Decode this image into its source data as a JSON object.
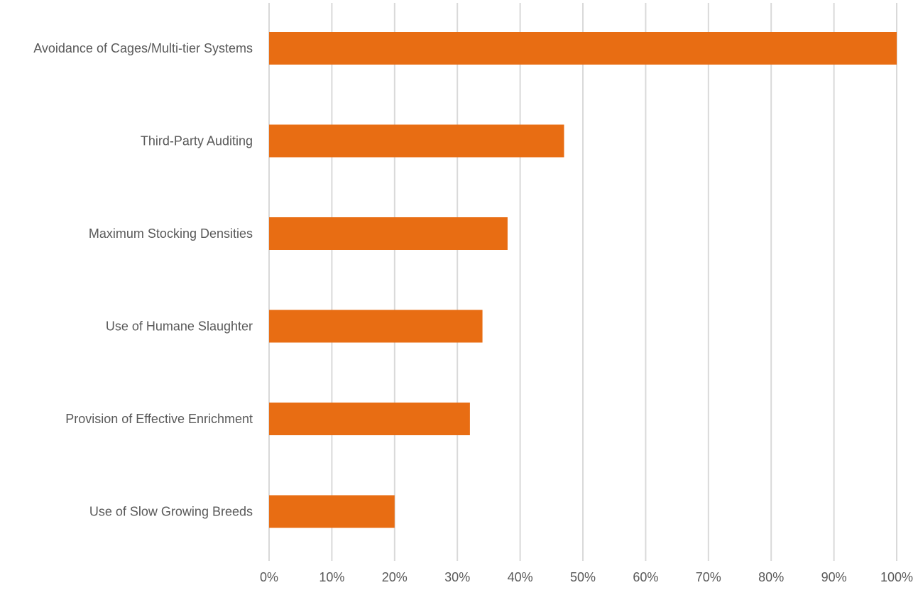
{
  "chart_data": {
    "type": "bar",
    "orientation": "horizontal",
    "title": "",
    "xlabel": "",
    "ylabel": "",
    "categories": [
      "Avoidance of Cages/Multi-tier Systems",
      "Third-Party Auditing",
      "Maximum Stocking Densities",
      "Use of Humane Slaughter",
      "Provision of Effective Enrichment",
      "Use of Slow Growing Breeds"
    ],
    "values": [
      100,
      47,
      38,
      34,
      32,
      20
    ],
    "xlim": [
      0,
      100
    ],
    "x_ticks": [
      "0%",
      "10%",
      "20%",
      "30%",
      "40%",
      "50%",
      "60%",
      "70%",
      "80%",
      "90%",
      "100%"
    ],
    "grid": "vertical",
    "legend": "none",
    "bar_color": "#e86d13",
    "grid_color": "#d9d9d9",
    "text_color": "#595959"
  }
}
